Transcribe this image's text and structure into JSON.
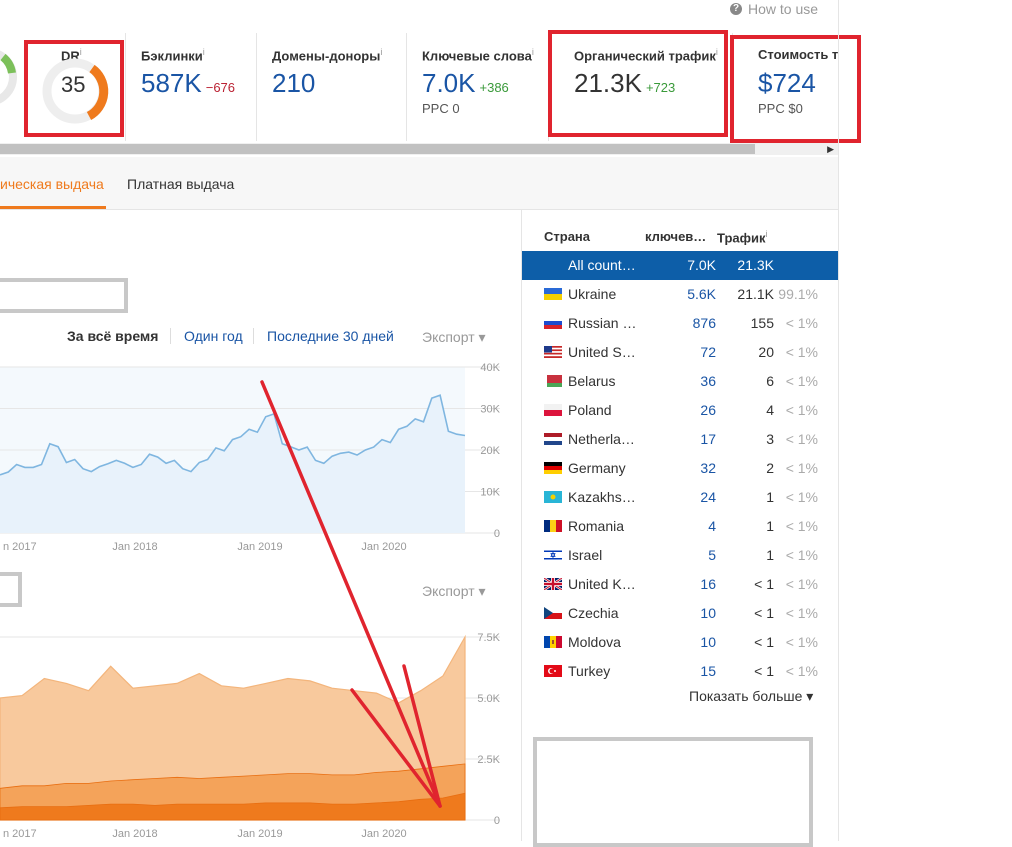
{
  "help": {
    "label": "How to use"
  },
  "metrics": {
    "dr": {
      "title": "DR",
      "info": "i",
      "value": "35"
    },
    "backlinks": {
      "title": "Бэклинки",
      "info": "i",
      "value": "587K",
      "delta": "−676"
    },
    "domains": {
      "title": "Домены-доноры",
      "info": "i",
      "value": "210"
    },
    "keywords": {
      "title": "Ключевые слова",
      "info": "i",
      "value": "7.0K",
      "delta": "+386",
      "sub": "PPC 0"
    },
    "traffic": {
      "title": "Органический трафик",
      "info": "i",
      "value": "21.3K",
      "delta": "+723"
    },
    "cost": {
      "title": "Стоимость т",
      "value": "$724",
      "sub": "PPC $0"
    }
  },
  "tabs": {
    "organic": "ическая выдача",
    "paid": "Платная выдача"
  },
  "periods": {
    "all_time": "За всё время",
    "one_year": "Один год",
    "last_30": "Последние 30 дней",
    "export": "Экспорт"
  },
  "chart1": {
    "y_ticks": [
      "40K",
      "30K",
      "20K",
      "10K",
      "0"
    ],
    "x_ticks": [
      "n 2017",
      "Jan 2018",
      "Jan 2019",
      "Jan 2020"
    ]
  },
  "chart2": {
    "export": "Экспорт",
    "y_ticks": [
      "7.5K",
      "5.0K",
      "2.5K",
      "0"
    ],
    "x_ticks": [
      "n 2017",
      "Jan 2018",
      "Jan 2019",
      "Jan 2020"
    ]
  },
  "chart_data": [
    {
      "type": "area",
      "title": "",
      "ylim": [
        0,
        40000
      ],
      "x_range": [
        "2016-10",
        "2020-09"
      ],
      "series": [
        {
          "values": [
            14000,
            16500,
            15800,
            21500,
            17000,
            15500,
            16000,
            17500,
            15800,
            19000,
            16800,
            15500,
            17000,
            20500,
            22500,
            25000,
            28000,
            21500,
            20000,
            17500,
            18500,
            19500,
            20000,
            22500,
            25000,
            27500,
            32500,
            24500,
            23500
          ]
        }
      ],
      "grid": true
    },
    {
      "type": "area",
      "title": "",
      "ylim": [
        0,
        7500
      ],
      "x_range": [
        "2016-10",
        "2020-09"
      ],
      "series": [
        {
          "values": [
            5000,
            5100,
            5800,
            5600,
            5300,
            6300,
            5400,
            5500,
            5600,
            6000,
            5500,
            5400,
            5600,
            5800,
            5700,
            5400,
            5300,
            5200,
            4800,
            5300,
            5900,
            7500
          ]
        },
        {
          "values": [
            1300,
            1400,
            1400,
            1500,
            1500,
            1600,
            1650,
            1700,
            1750,
            1700,
            1750,
            1800,
            1850,
            1900,
            1900,
            1850,
            1850,
            1950,
            2000,
            2100,
            2200,
            2300
          ]
        },
        {
          "values": [
            500,
            550,
            550,
            550,
            600,
            650,
            650,
            600,
            650,
            650,
            650,
            650,
            700,
            700,
            700,
            650,
            650,
            700,
            750,
            850,
            900,
            1100
          ]
        }
      ],
      "colors": [
        "#f8c99d",
        "#f4a35a",
        "#ef7a1d"
      ],
      "grid": true
    }
  ],
  "table": {
    "headers": {
      "country": "Страна",
      "keywords": "ключев…",
      "traffic": "Трафик",
      "info": "i"
    },
    "rows": [
      {
        "name": "All count…",
        "kw": "7.0K",
        "tr": "21.3K",
        "pct": "",
        "flag": "none"
      },
      {
        "name": "Ukraine",
        "kw": "5.6K",
        "tr": "21.1K",
        "pct": "99.1%",
        "flag": "ua"
      },
      {
        "name": "Russian …",
        "kw": "876",
        "tr": "155",
        "pct": "< 1%",
        "flag": "ru"
      },
      {
        "name": "United S…",
        "kw": "72",
        "tr": "20",
        "pct": "< 1%",
        "flag": "us"
      },
      {
        "name": "Belarus",
        "kw": "36",
        "tr": "6",
        "pct": "< 1%",
        "flag": "by"
      },
      {
        "name": "Poland",
        "kw": "26",
        "tr": "4",
        "pct": "< 1%",
        "flag": "pl"
      },
      {
        "name": "Netherla…",
        "kw": "17",
        "tr": "3",
        "pct": "< 1%",
        "flag": "nl"
      },
      {
        "name": "Germany",
        "kw": "32",
        "tr": "2",
        "pct": "< 1%",
        "flag": "de"
      },
      {
        "name": "Kazakhs…",
        "kw": "24",
        "tr": "1",
        "pct": "< 1%",
        "flag": "kz"
      },
      {
        "name": "Romania",
        "kw": "4",
        "tr": "1",
        "pct": "< 1%",
        "flag": "ro"
      },
      {
        "name": "Israel",
        "kw": "5",
        "tr": "1",
        "pct": "< 1%",
        "flag": "il"
      },
      {
        "name": "United K…",
        "kw": "16",
        "tr": "< 1",
        "pct": "< 1%",
        "flag": "gb"
      },
      {
        "name": "Czechia",
        "kw": "10",
        "tr": "< 1",
        "pct": "< 1%",
        "flag": "cz"
      },
      {
        "name": "Moldova",
        "kw": "10",
        "tr": "< 1",
        "pct": "< 1%",
        "flag": "md"
      },
      {
        "name": "Turkey",
        "kw": "15",
        "tr": "< 1",
        "pct": "< 1%",
        "flag": "tr"
      }
    ],
    "show_more": "Показать больше ▾"
  },
  "colors": {
    "accent": "#ef7a1d",
    "link": "#1a55a5",
    "selected_row": "#0d5ea8",
    "annotation_red": "#e0242e"
  }
}
